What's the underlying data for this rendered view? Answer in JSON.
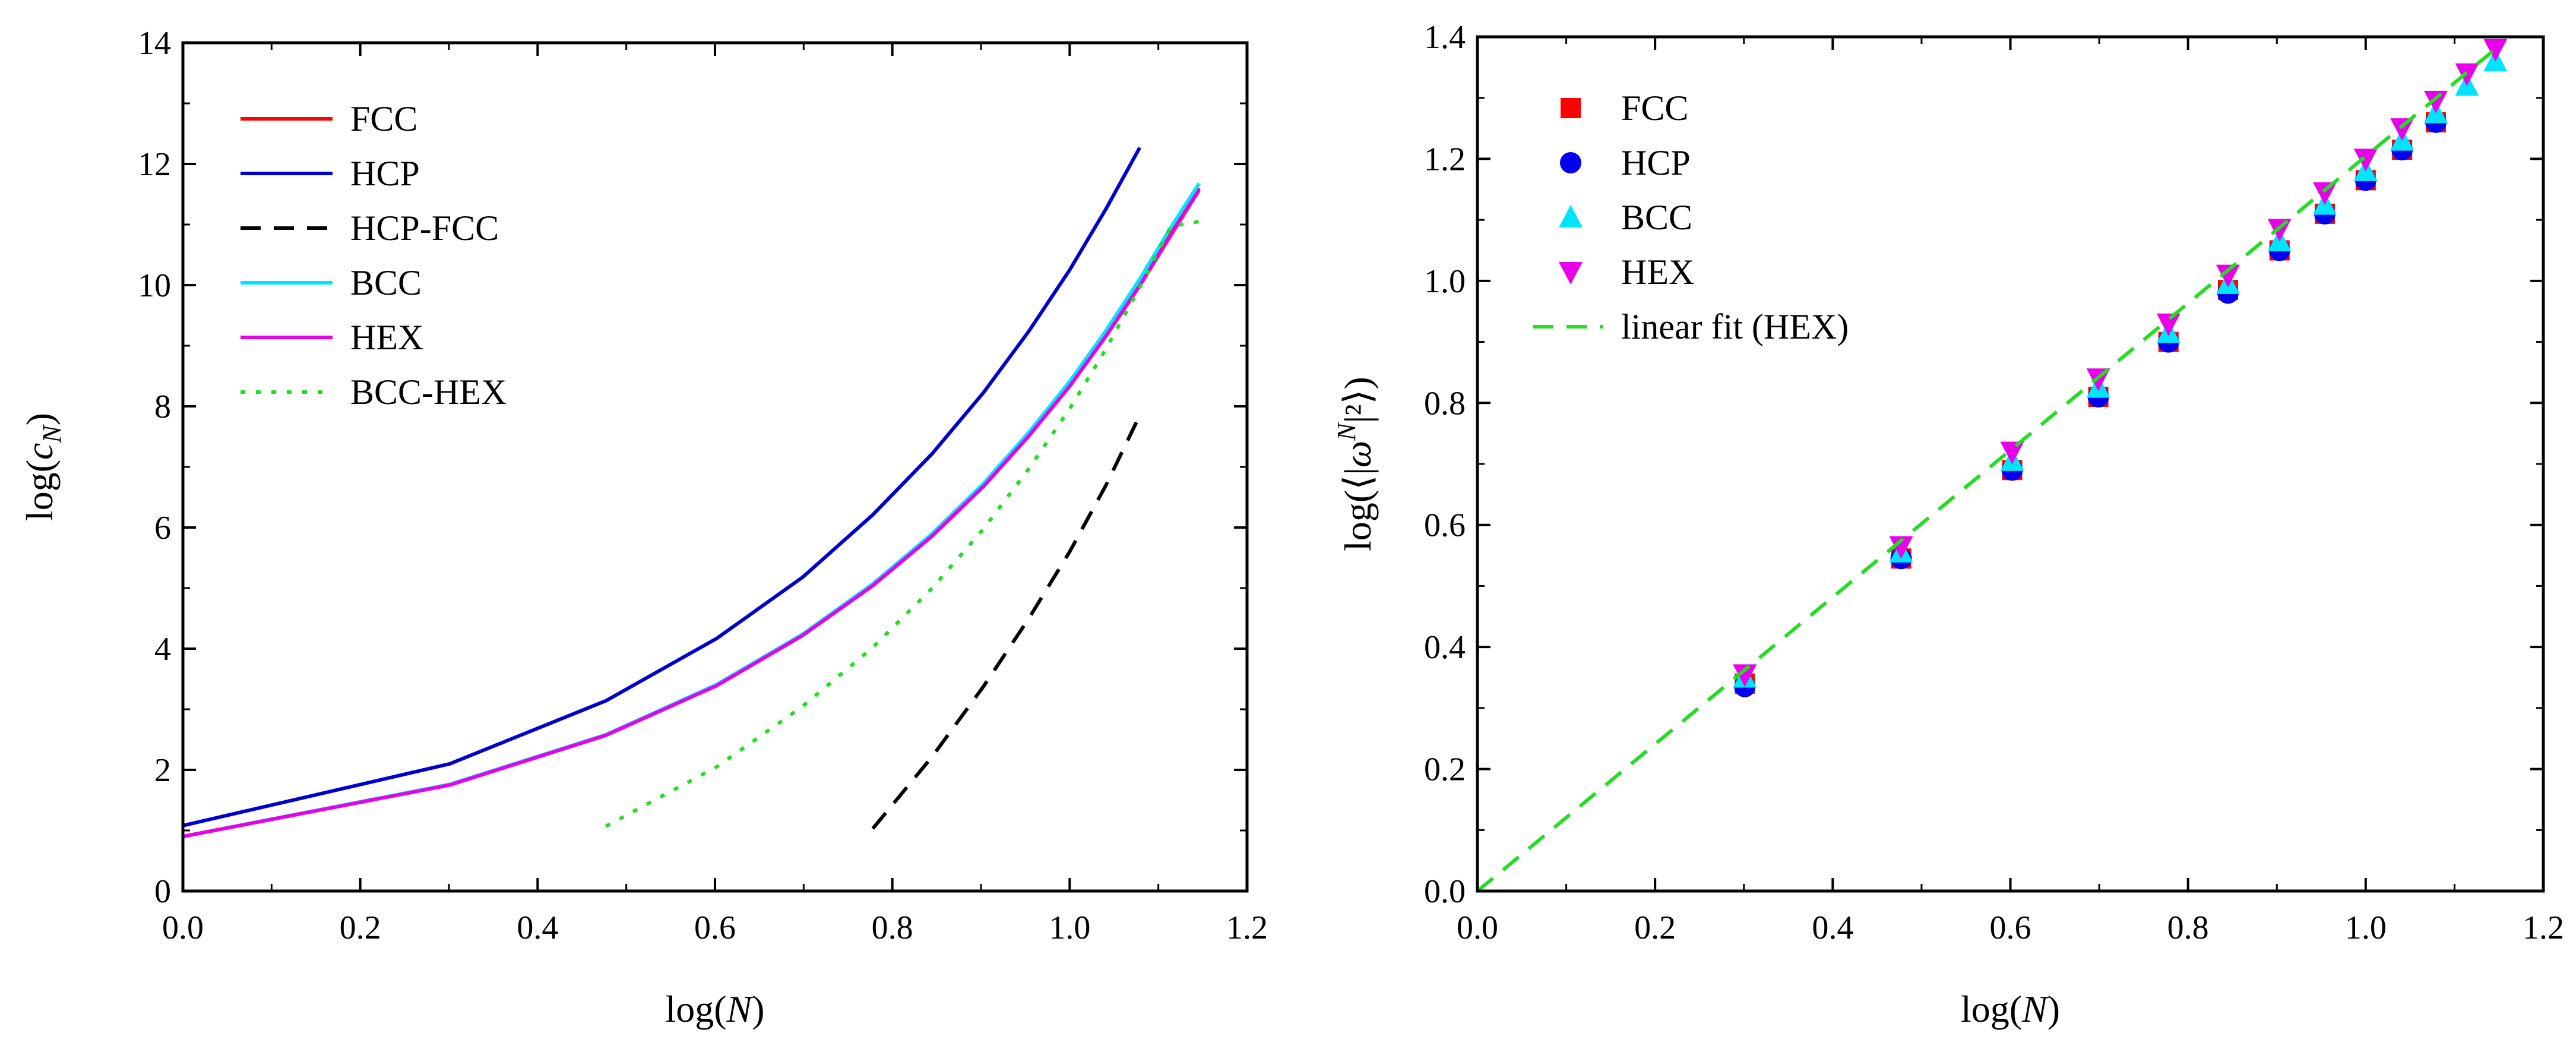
{
  "chart_data": [
    {
      "type": "line",
      "xlabel": {
        "prefix": "log(",
        "var": "N",
        "suffix": ")"
      },
      "ylabel": {
        "prefix": "log(",
        "var": "c",
        "sub": "N",
        "suffix": ")"
      },
      "xlim": [
        0,
        1.2
      ],
      "ylim": [
        0,
        14
      ],
      "xticks": [
        "0.0",
        "0.2",
        "0.4",
        "0.6",
        "0.8",
        "1.0",
        "1.2"
      ],
      "yticks": [
        "0",
        "2",
        "4",
        "6",
        "8",
        "10",
        "12",
        "14"
      ],
      "legend": "top-left",
      "series": [
        {
          "name": "FCC",
          "color": "#ff0000",
          "style": "solid",
          "x": [
            0,
            0.301,
            0.477,
            0.602,
            0.699,
            0.778,
            0.845,
            0.903,
            0.954,
            1.0,
            1.041,
            1.079,
            1.114,
            1.146
          ],
          "y": [
            0.9,
            1.76,
            2.58,
            3.4,
            4.23,
            5.05,
            5.87,
            6.69,
            7.52,
            8.35,
            9.18,
            10.02,
            10.85,
            11.6
          ]
        },
        {
          "name": "HCP",
          "color": "#0000cc",
          "style": "solid",
          "x": [
            0,
            0.301,
            0.477,
            0.602,
            0.699,
            0.778,
            0.845,
            0.903,
            0.954,
            1.0,
            1.041,
            1.079
          ],
          "y": [
            1.08,
            2.1,
            3.14,
            4.17,
            5.18,
            6.21,
            7.22,
            8.23,
            9.24,
            10.25,
            11.26,
            12.27
          ]
        },
        {
          "name": "HCP-FCC",
          "color": "#000000",
          "style": "dashed",
          "x": [
            0.778,
            0.845,
            0.903,
            0.954,
            1.0,
            1.041,
            1.079
          ],
          "y": [
            1.03,
            2.22,
            3.38,
            4.5,
            5.6,
            6.7,
            7.85
          ]
        },
        {
          "name": "BCC",
          "color": "#00e5ff",
          "style": "solid",
          "x": [
            0,
            0.301,
            0.477,
            0.602,
            0.699,
            0.778,
            0.845,
            0.903,
            0.954,
            1.0,
            1.041,
            1.079,
            1.114,
            1.146
          ],
          "y": [
            0.9,
            1.76,
            2.58,
            3.41,
            4.24,
            5.07,
            5.9,
            6.73,
            7.57,
            8.41,
            9.25,
            10.1,
            10.95,
            11.68
          ]
        },
        {
          "name": "HEX",
          "color": "#e800e8",
          "style": "solid",
          "x": [
            0,
            0.301,
            0.477,
            0.602,
            0.699,
            0.778,
            0.845,
            0.903,
            0.954,
            1.0,
            1.041,
            1.079,
            1.114,
            1.146
          ],
          "y": [
            0.9,
            1.75,
            2.57,
            3.39,
            4.22,
            5.04,
            5.86,
            6.68,
            7.51,
            8.33,
            9.16,
            9.99,
            10.82,
            11.57
          ]
        },
        {
          "name": "BCC-HEX",
          "color": "#22dd22",
          "style": "dotted",
          "x": [
            0.477,
            0.602,
            0.699,
            0.778,
            0.845,
            0.903,
            0.954,
            1.0,
            1.041,
            1.079,
            1.114,
            1.146
          ],
          "y": [
            1.07,
            2.05,
            3.05,
            4.02,
            5.0,
            5.98,
            6.97,
            7.96,
            8.95,
            9.96,
            10.97,
            11.05
          ]
        }
      ]
    },
    {
      "type": "scatter",
      "xlabel": {
        "prefix": "log(",
        "var": "N",
        "suffix": ")"
      },
      "ylabel": {
        "prefix": "log(⟨|",
        "var": "ω",
        "sup": "N",
        "suffix": "|²⟩)"
      },
      "xlim": [
        0,
        1.2
      ],
      "ylim": [
        0,
        1.4
      ],
      "xticks": [
        "0.0",
        "0.2",
        "0.4",
        "0.6",
        "0.8",
        "1.0",
        "1.2"
      ],
      "yticks": [
        "0.0",
        "0.2",
        "0.4",
        "0.6",
        "0.8",
        "1.0",
        "1.2",
        "1.4"
      ],
      "legend": "top-left",
      "series": [
        {
          "name": "FCC",
          "color": "#ff0000",
          "marker": "square",
          "x": [
            0.301,
            0.477,
            0.602,
            0.699,
            0.778,
            0.845,
            0.903,
            0.954,
            1.0,
            1.041,
            1.079
          ],
          "y": [
            0.34,
            0.545,
            0.69,
            0.81,
            0.9,
            0.985,
            1.05,
            1.11,
            1.165,
            1.215,
            1.26
          ]
        },
        {
          "name": "HCP",
          "color": "#0000ee",
          "marker": "circle",
          "x": [
            0.301,
            0.477,
            0.602,
            0.699,
            0.778,
            0.845,
            0.903,
            0.954,
            1.0,
            1.041,
            1.079
          ],
          "y": [
            0.335,
            0.545,
            0.69,
            0.81,
            0.9,
            0.98,
            1.05,
            1.11,
            1.165,
            1.215,
            1.26
          ]
        },
        {
          "name": "BCC",
          "color": "#00e5ff",
          "marker": "triangle-up",
          "x": [
            0.301,
            0.477,
            0.602,
            0.699,
            0.778,
            0.845,
            0.903,
            0.954,
            1.0,
            1.041,
            1.079,
            1.114,
            1.146
          ],
          "y": [
            0.35,
            0.555,
            0.705,
            0.825,
            0.915,
            0.995,
            1.065,
            1.125,
            1.18,
            1.23,
            1.275,
            1.32,
            1.36
          ]
        },
        {
          "name": "HEX",
          "color": "#e800e8",
          "marker": "triangle-down",
          "x": [
            0.301,
            0.477,
            0.602,
            0.699,
            0.778,
            0.845,
            0.903,
            0.954,
            1.0,
            1.041,
            1.079,
            1.114,
            1.146
          ],
          "y": [
            0.355,
            0.565,
            0.72,
            0.84,
            0.93,
            1.01,
            1.085,
            1.145,
            1.2,
            1.25,
            1.295,
            1.34,
            1.38
          ]
        },
        {
          "name": "linear fit (HEX)",
          "color": "#22dd22",
          "style": "dashed",
          "line": true,
          "x": [
            0,
            1.146
          ],
          "y": [
            0,
            1.38
          ]
        }
      ]
    }
  ]
}
